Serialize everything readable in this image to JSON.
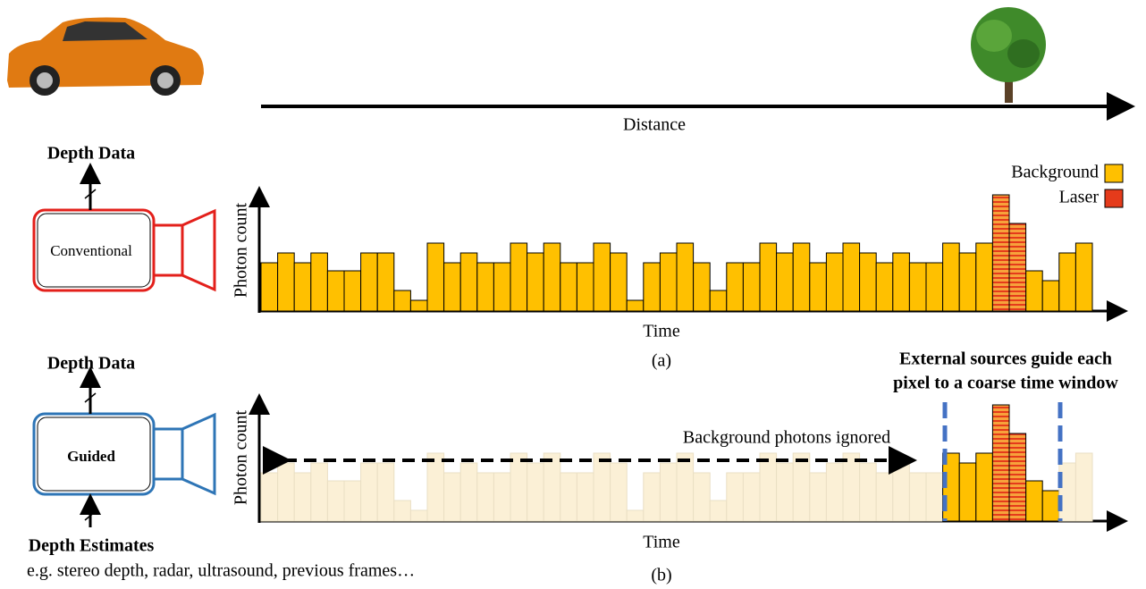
{
  "diagram": {
    "distance_label": "Distance",
    "conventional": {
      "output": "Depth Data",
      "camera": "Conventional",
      "caption": "(a)"
    },
    "guided": {
      "output": "Depth Data",
      "camera": "Guided",
      "input": "Depth Estimates",
      "input_examples": "e.g. stereo depth, radar, ultrasound, previous frames…",
      "note_lines": [
        "External sources guide each",
        "pixel to a coarse time window"
      ],
      "ignored_label": "Background photons ignored",
      "caption": "(b)"
    }
  },
  "chart_data": {
    "type": "bar",
    "x_label": "Time",
    "y_label": "Photon count",
    "series": [
      {
        "name": "Background",
        "color": "#FFC000",
        "values": [
          54,
          65,
          54,
          65,
          45,
          45,
          65,
          65,
          23,
          12,
          76,
          54,
          65,
          54,
          54,
          76,
          65,
          76,
          54,
          54,
          76,
          65,
          12,
          54,
          65,
          76,
          54,
          23,
          54,
          54,
          76,
          65,
          76,
          54,
          65,
          76,
          65,
          54,
          65,
          54,
          54,
          76,
          65,
          76,
          null,
          null,
          45,
          34,
          65,
          76
        ]
      },
      {
        "name": "Laser",
        "color": "#E53B1B",
        "values": [
          null,
          null,
          null,
          null,
          null,
          null,
          null,
          null,
          null,
          null,
          null,
          null,
          null,
          null,
          null,
          null,
          null,
          null,
          null,
          null,
          null,
          null,
          null,
          null,
          null,
          null,
          null,
          null,
          null,
          null,
          null,
          null,
          null,
          null,
          null,
          null,
          null,
          null,
          null,
          null,
          null,
          null,
          null,
          null,
          130,
          98,
          null,
          null,
          null,
          null
        ]
      }
    ]
  }
}
